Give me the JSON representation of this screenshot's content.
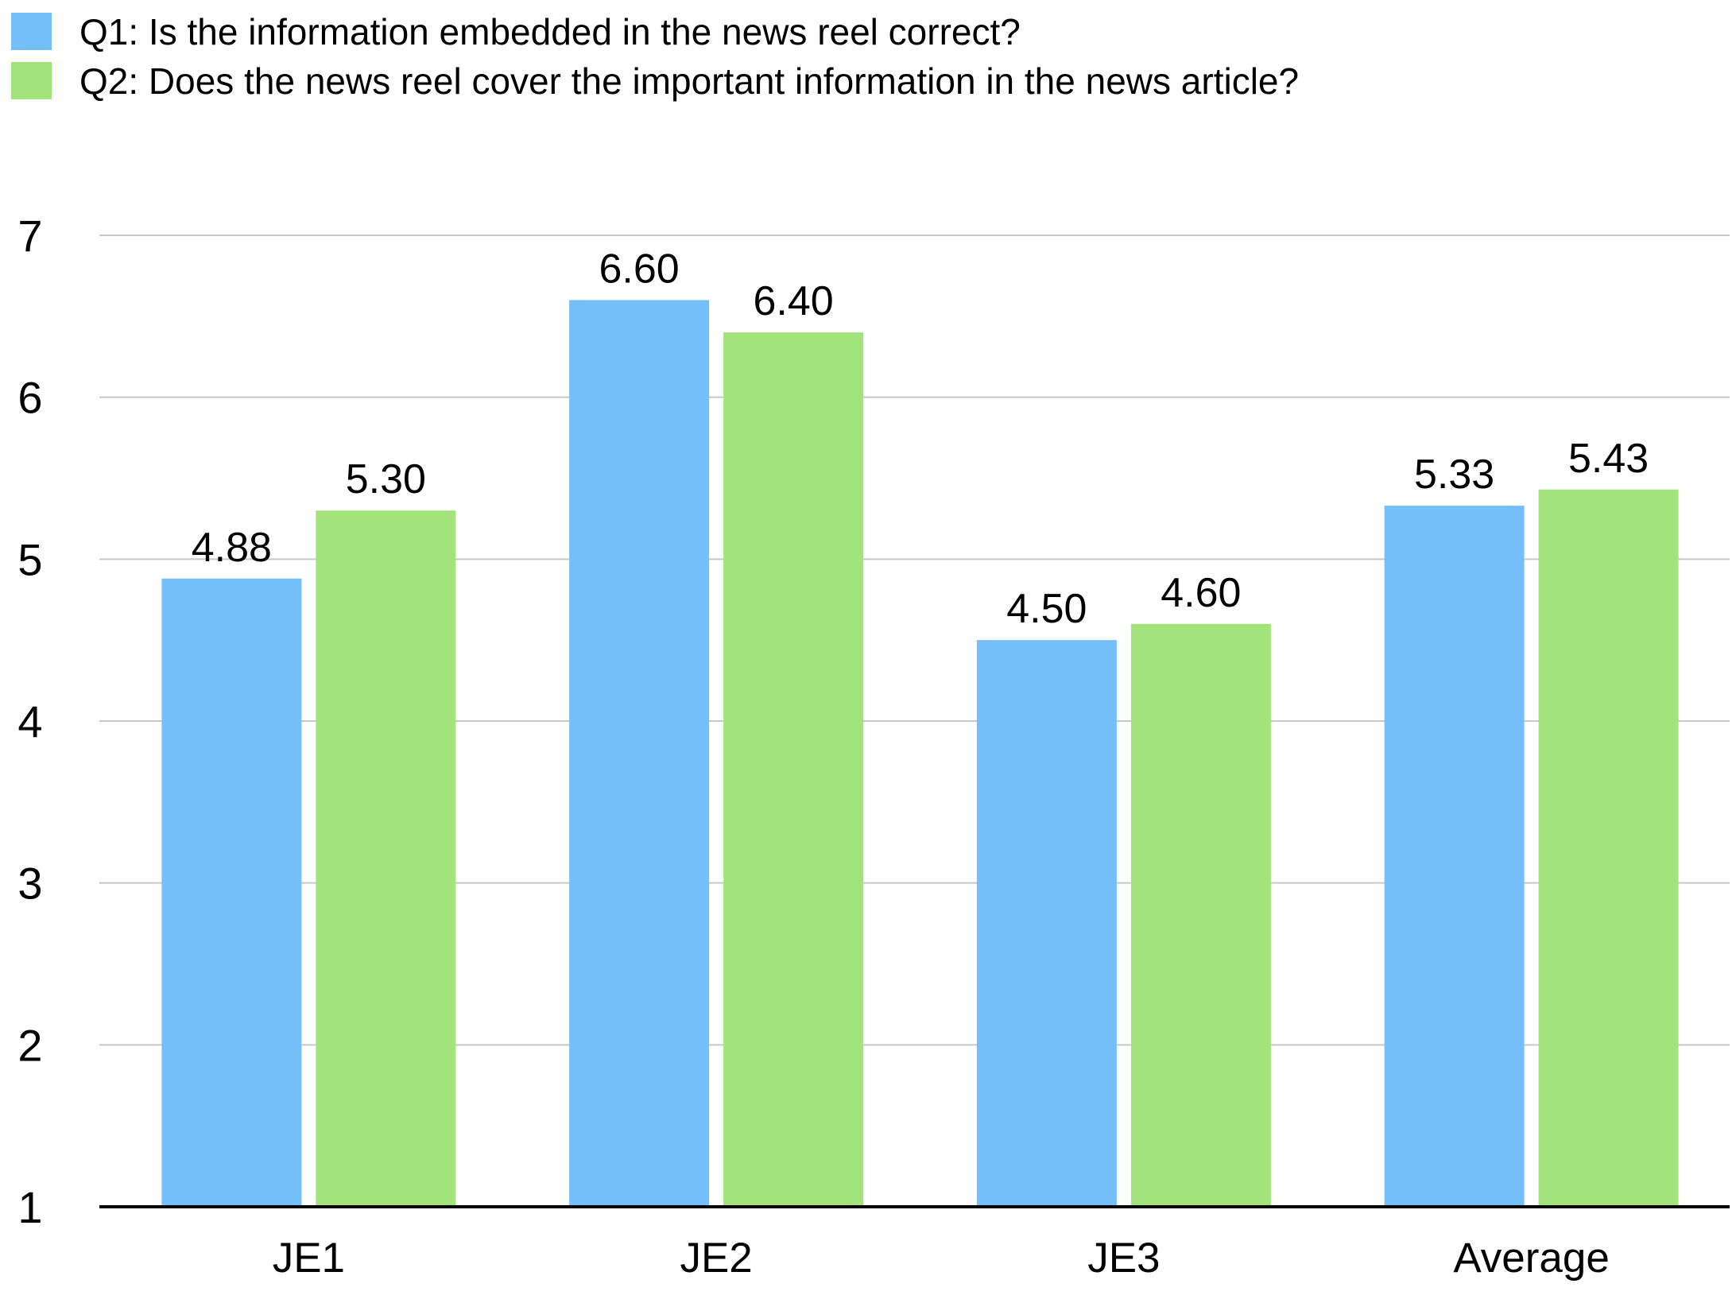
{
  "chart_data": {
    "type": "bar",
    "categories": [
      "JE1",
      "JE2",
      "JE3",
      "Average"
    ],
    "series": [
      {
        "name": "Q1: Is the information embedded in the news reel correct?",
        "color": "#74BFF9",
        "values": [
          4.88,
          6.6,
          4.5,
          5.33
        ],
        "labels": [
          "4.88",
          "6.60",
          "4.50",
          "5.33"
        ]
      },
      {
        "name": "Q2: Does the news reel cover the important information in the news article?",
        "color": "#A2E37B",
        "values": [
          5.3,
          6.4,
          4.6,
          5.43
        ],
        "labels": [
          "5.30",
          "6.40",
          "4.60",
          "5.43"
        ]
      }
    ],
    "ylim": [
      1,
      7
    ],
    "yticks": [
      "1",
      "2",
      "3",
      "4",
      "5",
      "6",
      "7"
    ],
    "grid": true,
    "legend": "top-left",
    "title": "",
    "xlabel": "",
    "ylabel": ""
  }
}
